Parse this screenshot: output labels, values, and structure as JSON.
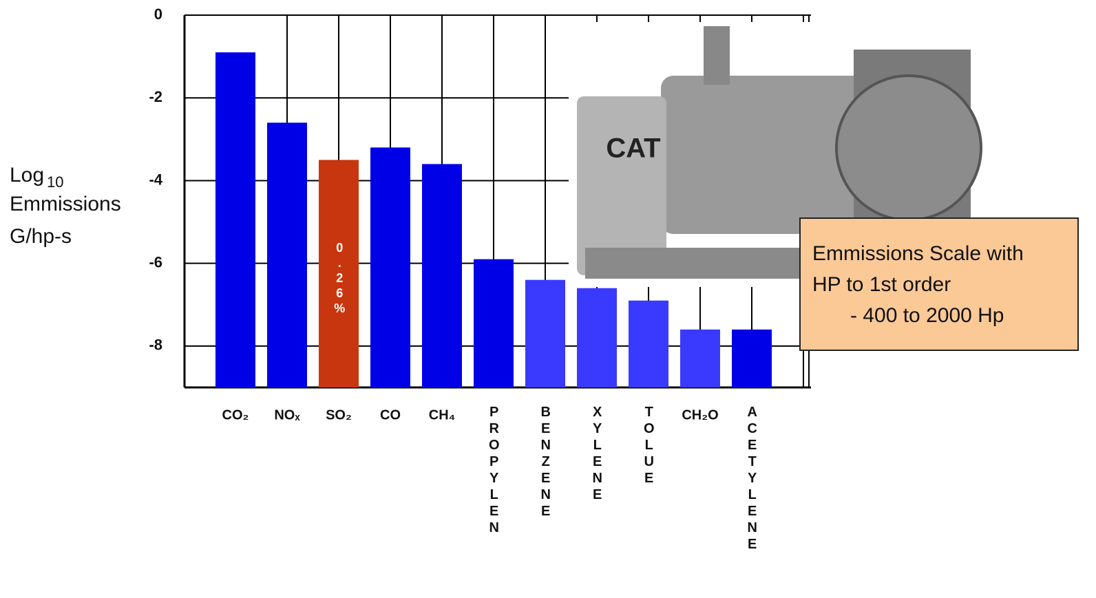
{
  "chart_data": {
    "type": "bar",
    "y_label_main": "Log",
    "y_label_sub": "10",
    "y_label_line2": "Emmissions",
    "y_label_line3": "G/hp-s",
    "categories": [
      "CO₂",
      "NOₓ",
      "SO₂",
      "CO",
      "CH₄",
      "PROPYLEN",
      "BENZENE",
      "XYLENE",
      "TOLUE",
      "CH₂O",
      "ACETYLENE"
    ],
    "values": [
      -0.9,
      -2.6,
      -3.5,
      -3.2,
      -3.6,
      -5.9,
      -6.4,
      -6.6,
      -6.9,
      -7.6,
      -7.6
    ],
    "colors": [
      "#0000e6",
      "#0000e6",
      "#c8360f",
      "#0000e6",
      "#0000e6",
      "#0000e6",
      "#3a3aff",
      "#3a3aff",
      "#3a3aff",
      "#3a3aff",
      "#0000e6"
    ],
    "bar_annotation": {
      "index": 2,
      "text": "0.26%"
    },
    "ylim": [
      -9,
      0
    ],
    "yticks": [
      0,
      -2,
      -4,
      -6,
      -8
    ],
    "grid": true,
    "photo_text": "CAT",
    "note_lines": [
      "Emmissions Scale with",
      "HP to 1st order",
      "-  400 to 2000 Hp"
    ]
  }
}
